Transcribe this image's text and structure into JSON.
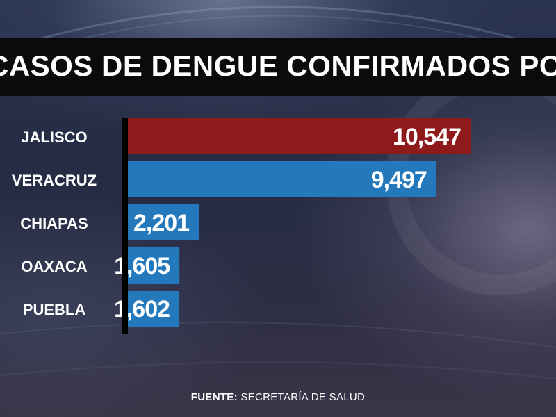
{
  "title": "CASOS DE DENGUE CONFIRMADOS POR ESTADO",
  "source_label": "FUENTE:",
  "source_value": "SECRETARÍA DE SALUD",
  "colors": {
    "highlight": "#8e1a1c",
    "bar": "#2479bc",
    "axis": "#000000",
    "text": "#ffffff"
  },
  "chart_data": {
    "type": "bar",
    "orientation": "horizontal",
    "categories": [
      "JALISCO",
      "VERACRUZ",
      "CHIAPAS",
      "OAXACA",
      "PUEBLA"
    ],
    "values": [
      10547,
      9497,
      2201,
      1605,
      1602
    ],
    "value_labels": [
      "10,547",
      "9,497",
      "2,201",
      "1,605",
      "1,602"
    ],
    "highlighted_category": "JALISCO",
    "title": "CASOS DE DENGUE CONFIRMADOS POR ESTADO",
    "xlabel": "",
    "ylabel": "",
    "grid": false,
    "legend": "none"
  }
}
